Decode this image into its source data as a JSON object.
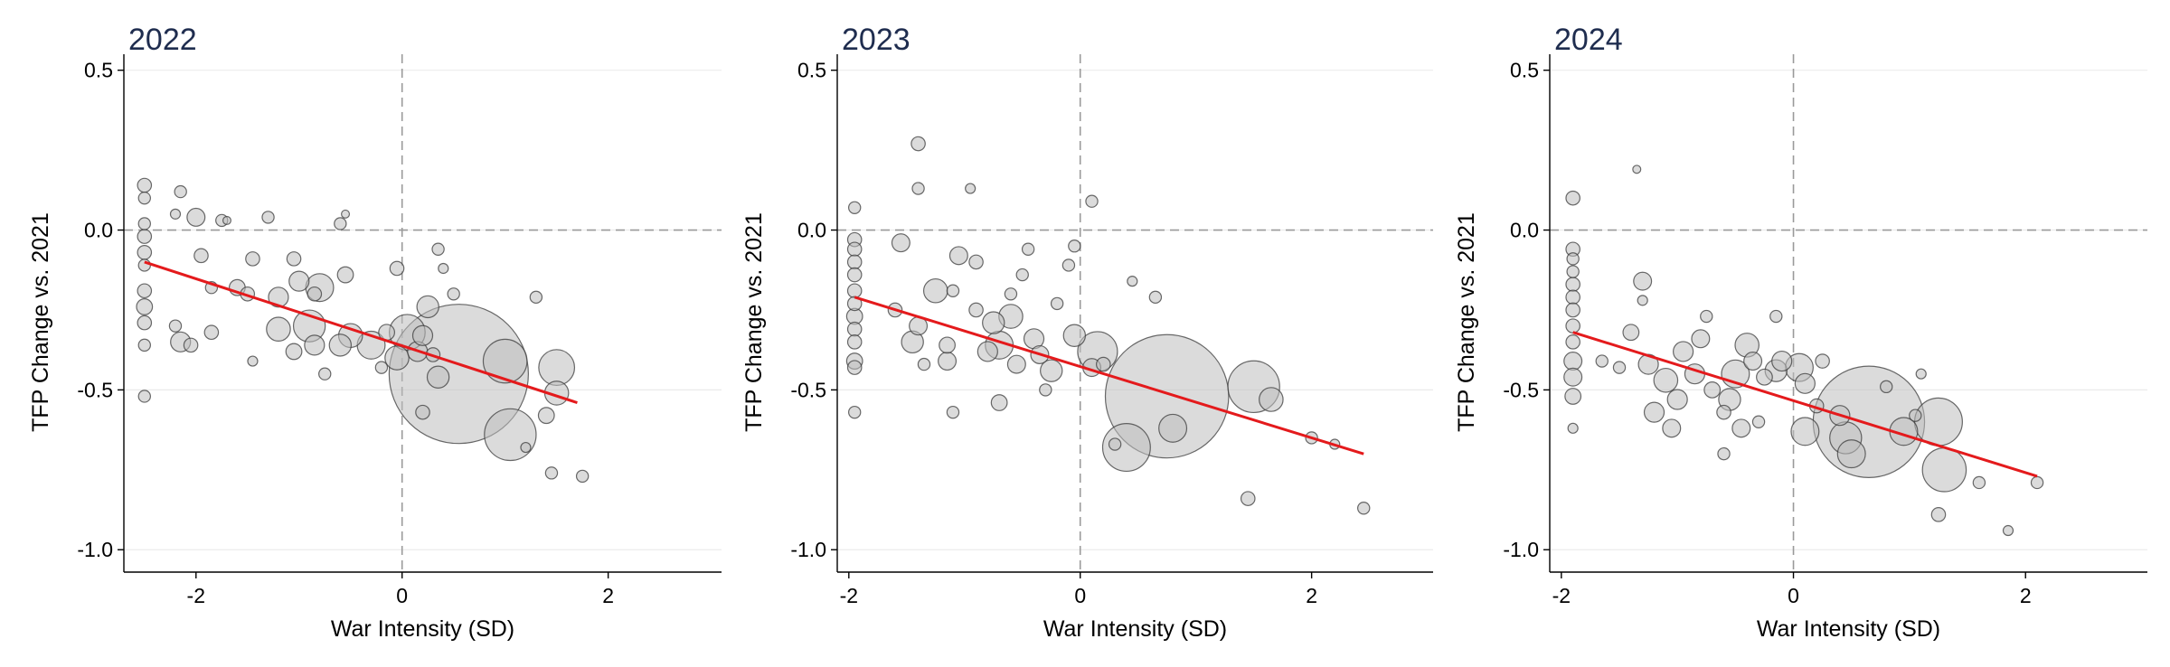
{
  "colors": {
    "bubble_fill": "#bdbdbd",
    "bubble_stroke": "#3a3a3a",
    "fit_line": "#e41a1c",
    "title": "#1f2d4f",
    "reference_line": "#9a9a9a",
    "grid": "#ebebeb"
  },
  "chart_data": [
    {
      "type": "scatter",
      "title": "2022",
      "xlabel": "War Intensity (SD)",
      "ylabel": "TFP Change vs. 2021",
      "xlim": [
        -2.7,
        3.1
      ],
      "ylim": [
        -1.07,
        0.55
      ],
      "xticks": [
        -2,
        0,
        2
      ],
      "yticks": [
        0.5,
        0.0,
        -0.5,
        -1.0
      ],
      "ytick_labels": [
        "0.5",
        "0.0",
        "-0.5",
        "-1.0"
      ],
      "grid": "horizontal",
      "reference_lines": {
        "x": 0,
        "y": 0
      },
      "fit": {
        "x": [
          -2.5,
          1.7
        ],
        "y": [
          -0.1,
          -0.54
        ]
      },
      "points": [
        {
          "x": -2.5,
          "y": 0.14,
          "s": 0.35
        },
        {
          "x": -2.5,
          "y": 0.1,
          "s": 0.3
        },
        {
          "x": -2.5,
          "y": 0.02,
          "s": 0.3
        },
        {
          "x": -2.5,
          "y": -0.02,
          "s": 0.35
        },
        {
          "x": -2.5,
          "y": -0.07,
          "s": 0.35
        },
        {
          "x": -2.5,
          "y": -0.11,
          "s": 0.3
        },
        {
          "x": -2.5,
          "y": -0.19,
          "s": 0.35
        },
        {
          "x": -2.5,
          "y": -0.24,
          "s": 0.4
        },
        {
          "x": -2.5,
          "y": -0.29,
          "s": 0.35
        },
        {
          "x": -2.5,
          "y": -0.36,
          "s": 0.3
        },
        {
          "x": -2.5,
          "y": -0.52,
          "s": 0.3
        },
        {
          "x": -2.15,
          "y": 0.12,
          "s": 0.3
        },
        {
          "x": -2.2,
          "y": 0.05,
          "s": 0.25
        },
        {
          "x": -2.0,
          "y": 0.04,
          "s": 0.45
        },
        {
          "x": -1.75,
          "y": 0.03,
          "s": 0.3
        },
        {
          "x": -1.7,
          "y": 0.03,
          "s": 0.2
        },
        {
          "x": -1.3,
          "y": 0.04,
          "s": 0.3
        },
        {
          "x": -1.95,
          "y": -0.08,
          "s": 0.35
        },
        {
          "x": -1.45,
          "y": -0.09,
          "s": 0.35
        },
        {
          "x": -0.55,
          "y": 0.05,
          "s": 0.2
        },
        {
          "x": -0.6,
          "y": 0.02,
          "s": 0.3
        },
        {
          "x": -2.2,
          "y": -0.3,
          "s": 0.3
        },
        {
          "x": -2.15,
          "y": -0.35,
          "s": 0.5
        },
        {
          "x": -2.05,
          "y": -0.36,
          "s": 0.35
        },
        {
          "x": -1.85,
          "y": -0.32,
          "s": 0.35
        },
        {
          "x": -1.6,
          "y": -0.18,
          "s": 0.4
        },
        {
          "x": -1.5,
          "y": -0.2,
          "s": 0.35
        },
        {
          "x": -1.2,
          "y": -0.21,
          "s": 0.5
        },
        {
          "x": -1.2,
          "y": -0.31,
          "s": 0.6
        },
        {
          "x": -1.05,
          "y": -0.09,
          "s": 0.35
        },
        {
          "x": -1.0,
          "y": -0.16,
          "s": 0.5
        },
        {
          "x": -0.8,
          "y": -0.18,
          "s": 0.7
        },
        {
          "x": -0.9,
          "y": -0.3,
          "s": 0.8
        },
        {
          "x": -0.85,
          "y": -0.36,
          "s": 0.5
        },
        {
          "x": -0.55,
          "y": -0.14,
          "s": 0.4
        },
        {
          "x": -0.5,
          "y": -0.33,
          "s": 0.6
        },
        {
          "x": -0.6,
          "y": -0.36,
          "s": 0.55
        },
        {
          "x": -1.05,
          "y": -0.38,
          "s": 0.4
        },
        {
          "x": -1.45,
          "y": -0.41,
          "s": 0.25
        },
        {
          "x": -0.75,
          "y": -0.45,
          "s": 0.3
        },
        {
          "x": -0.3,
          "y": -0.36,
          "s": 0.7
        },
        {
          "x": -0.05,
          "y": -0.4,
          "s": 0.6
        },
        {
          "x": -0.05,
          "y": -0.12,
          "s": 0.35
        },
        {
          "x": 0.05,
          "y": -0.32,
          "s": 0.9
        },
        {
          "x": 0.15,
          "y": -0.38,
          "s": 0.5
        },
        {
          "x": 0.25,
          "y": -0.24,
          "s": 0.55
        },
        {
          "x": 0.2,
          "y": -0.33,
          "s": 0.5
        },
        {
          "x": 0.3,
          "y": -0.39,
          "s": 0.35
        },
        {
          "x": 0.35,
          "y": -0.06,
          "s": 0.3
        },
        {
          "x": 0.4,
          "y": -0.12,
          "s": 0.25
        },
        {
          "x": 0.35,
          "y": -0.46,
          "s": 0.55
        },
        {
          "x": 0.2,
          "y": -0.57,
          "s": 0.35
        },
        {
          "x": 0.55,
          "y": -0.45,
          "s": 3.5
        },
        {
          "x": 1.05,
          "y": -0.64,
          "s": 1.3
        },
        {
          "x": 1.0,
          "y": -0.41,
          "s": 1.1
        },
        {
          "x": 1.5,
          "y": -0.43,
          "s": 0.9
        },
        {
          "x": 1.5,
          "y": -0.51,
          "s": 0.6
        },
        {
          "x": 1.4,
          "y": -0.58,
          "s": 0.4
        },
        {
          "x": 1.3,
          "y": -0.21,
          "s": 0.3
        },
        {
          "x": 1.2,
          "y": -0.68,
          "s": 0.25
        },
        {
          "x": 1.45,
          "y": -0.76,
          "s": 0.3
        },
        {
          "x": 1.75,
          "y": -0.77,
          "s": 0.3
        },
        {
          "x": -0.15,
          "y": -0.32,
          "s": 0.4
        },
        {
          "x": -1.85,
          "y": -0.18,
          "s": 0.3
        },
        {
          "x": -0.2,
          "y": -0.43,
          "s": 0.3
        },
        {
          "x": -0.85,
          "y": -0.2,
          "s": 0.35
        },
        {
          "x": 0.5,
          "y": -0.2,
          "s": 0.3
        }
      ]
    },
    {
      "type": "scatter",
      "title": "2023",
      "xlabel": "War Intensity (SD)",
      "ylabel": "TFP Change vs. 2021",
      "xlim": [
        -2.1,
        3.05
      ],
      "ylim": [
        -1.07,
        0.55
      ],
      "xticks": [
        -2,
        0,
        2
      ],
      "yticks": [
        0.5,
        0.0,
        -0.5,
        -1.0
      ],
      "ytick_labels": [
        "0.5",
        "0.0",
        "-0.5",
        "-1.0"
      ],
      "grid": "horizontal",
      "reference_lines": {
        "x": 0,
        "y": 0
      },
      "fit": {
        "x": [
          -1.95,
          2.45
        ],
        "y": [
          -0.21,
          -0.7
        ]
      },
      "points": [
        {
          "x": -1.95,
          "y": 0.07,
          "s": 0.3
        },
        {
          "x": -1.95,
          "y": -0.03,
          "s": 0.35
        },
        {
          "x": -1.95,
          "y": -0.06,
          "s": 0.35
        },
        {
          "x": -1.95,
          "y": -0.1,
          "s": 0.35
        },
        {
          "x": -1.95,
          "y": -0.14,
          "s": 0.35
        },
        {
          "x": -1.95,
          "y": -0.19,
          "s": 0.35
        },
        {
          "x": -1.95,
          "y": -0.23,
          "s": 0.35
        },
        {
          "x": -1.95,
          "y": -0.27,
          "s": 0.4
        },
        {
          "x": -1.95,
          "y": -0.31,
          "s": 0.35
        },
        {
          "x": -1.95,
          "y": -0.35,
          "s": 0.35
        },
        {
          "x": -1.95,
          "y": -0.41,
          "s": 0.4
        },
        {
          "x": -1.95,
          "y": -0.43,
          "s": 0.35
        },
        {
          "x": -1.95,
          "y": -0.57,
          "s": 0.3
        },
        {
          "x": -1.4,
          "y": 0.27,
          "s": 0.35
        },
        {
          "x": -1.4,
          "y": 0.13,
          "s": 0.3
        },
        {
          "x": -0.95,
          "y": 0.13,
          "s": 0.25
        },
        {
          "x": 0.1,
          "y": 0.09,
          "s": 0.3
        },
        {
          "x": -1.55,
          "y": -0.04,
          "s": 0.45
        },
        {
          "x": -1.05,
          "y": -0.08,
          "s": 0.45
        },
        {
          "x": -0.9,
          "y": -0.1,
          "s": 0.35
        },
        {
          "x": -0.45,
          "y": -0.06,
          "s": 0.3
        },
        {
          "x": -0.05,
          "y": -0.05,
          "s": 0.3
        },
        {
          "x": -0.1,
          "y": -0.11,
          "s": 0.3
        },
        {
          "x": -0.5,
          "y": -0.14,
          "s": 0.3
        },
        {
          "x": -1.25,
          "y": -0.19,
          "s": 0.6
        },
        {
          "x": -1.1,
          "y": -0.19,
          "s": 0.3
        },
        {
          "x": -1.4,
          "y": -0.3,
          "s": 0.45
        },
        {
          "x": -1.45,
          "y": -0.35,
          "s": 0.55
        },
        {
          "x": -1.15,
          "y": -0.36,
          "s": 0.4
        },
        {
          "x": -1.15,
          "y": -0.41,
          "s": 0.45
        },
        {
          "x": -0.9,
          "y": -0.25,
          "s": 0.35
        },
        {
          "x": -0.75,
          "y": -0.29,
          "s": 0.55
        },
        {
          "x": -0.6,
          "y": -0.27,
          "s": 0.6
        },
        {
          "x": -0.7,
          "y": -0.36,
          "s": 0.7
        },
        {
          "x": -0.4,
          "y": -0.34,
          "s": 0.5
        },
        {
          "x": -0.35,
          "y": -0.39,
          "s": 0.45
        },
        {
          "x": -0.2,
          "y": -0.23,
          "s": 0.3
        },
        {
          "x": -0.55,
          "y": -0.42,
          "s": 0.45
        },
        {
          "x": -0.25,
          "y": -0.44,
          "s": 0.55
        },
        {
          "x": -0.05,
          "y": -0.33,
          "s": 0.55
        },
        {
          "x": -1.1,
          "y": -0.57,
          "s": 0.3
        },
        {
          "x": -0.7,
          "y": -0.54,
          "s": 0.4
        },
        {
          "x": -1.35,
          "y": -0.42,
          "s": 0.3
        },
        {
          "x": -0.3,
          "y": -0.5,
          "s": 0.3
        },
        {
          "x": 0.15,
          "y": -0.38,
          "s": 1.0
        },
        {
          "x": 0.1,
          "y": -0.43,
          "s": 0.45
        },
        {
          "x": 0.2,
          "y": -0.42,
          "s": 0.35
        },
        {
          "x": 0.45,
          "y": -0.16,
          "s": 0.25
        },
        {
          "x": 0.65,
          "y": -0.21,
          "s": 0.3
        },
        {
          "x": 0.75,
          "y": -0.52,
          "s": 3.1
        },
        {
          "x": 0.4,
          "y": -0.68,
          "s": 1.2
        },
        {
          "x": 0.8,
          "y": -0.62,
          "s": 0.7
        },
        {
          "x": 1.5,
          "y": -0.49,
          "s": 1.3
        },
        {
          "x": 1.65,
          "y": -0.53,
          "s": 0.6
        },
        {
          "x": 2.0,
          "y": -0.65,
          "s": 0.3
        },
        {
          "x": 2.2,
          "y": -0.67,
          "s": 0.25
        },
        {
          "x": 1.45,
          "y": -0.84,
          "s": 0.35
        },
        {
          "x": 2.45,
          "y": -0.87,
          "s": 0.3
        },
        {
          "x": 0.3,
          "y": -0.67,
          "s": 0.3
        },
        {
          "x": -0.8,
          "y": -0.38,
          "s": 0.5
        },
        {
          "x": -1.6,
          "y": -0.25,
          "s": 0.35
        },
        {
          "x": -0.6,
          "y": -0.2,
          "s": 0.3
        }
      ]
    },
    {
      "type": "scatter",
      "title": "2024",
      "xlabel": "War Intensity (SD)",
      "ylabel": "TFP Change vs. 2021",
      "xlim": [
        -2.1,
        3.05
      ],
      "ylim": [
        -1.07,
        0.55
      ],
      "xticks": [
        -2,
        0,
        2
      ],
      "yticks": [
        0.5,
        0.0,
        -0.5,
        -1.0
      ],
      "ytick_labels": [
        "0.5",
        "0.0",
        "-0.5",
        "-1.0"
      ],
      "grid": "horizontal",
      "reference_lines": {
        "x": 0,
        "y": 0
      },
      "fit": {
        "x": [
          -1.9,
          2.1
        ],
        "y": [
          -0.32,
          -0.77
        ]
      },
      "points": [
        {
          "x": -1.9,
          "y": 0.1,
          "s": 0.35
        },
        {
          "x": -1.9,
          "y": -0.06,
          "s": 0.35
        },
        {
          "x": -1.9,
          "y": -0.09,
          "s": 0.3
        },
        {
          "x": -1.9,
          "y": -0.13,
          "s": 0.3
        },
        {
          "x": -1.9,
          "y": -0.17,
          "s": 0.35
        },
        {
          "x": -1.9,
          "y": -0.21,
          "s": 0.35
        },
        {
          "x": -1.9,
          "y": -0.25,
          "s": 0.35
        },
        {
          "x": -1.9,
          "y": -0.3,
          "s": 0.35
        },
        {
          "x": -1.9,
          "y": -0.35,
          "s": 0.35
        },
        {
          "x": -1.9,
          "y": -0.41,
          "s": 0.45
        },
        {
          "x": -1.9,
          "y": -0.46,
          "s": 0.45
        },
        {
          "x": -1.9,
          "y": -0.52,
          "s": 0.4
        },
        {
          "x": -1.9,
          "y": -0.62,
          "s": 0.25
        },
        {
          "x": -1.35,
          "y": 0.19,
          "s": 0.2
        },
        {
          "x": -1.3,
          "y": -0.16,
          "s": 0.45
        },
        {
          "x": -1.3,
          "y": -0.22,
          "s": 0.25
        },
        {
          "x": -1.4,
          "y": -0.32,
          "s": 0.4
        },
        {
          "x": -1.5,
          "y": -0.43,
          "s": 0.3
        },
        {
          "x": -1.25,
          "y": -0.42,
          "s": 0.5
        },
        {
          "x": -1.2,
          "y": -0.57,
          "s": 0.5
        },
        {
          "x": -1.1,
          "y": -0.47,
          "s": 0.6
        },
        {
          "x": -1.0,
          "y": -0.53,
          "s": 0.5
        },
        {
          "x": -0.95,
          "y": -0.38,
          "s": 0.5
        },
        {
          "x": -0.85,
          "y": -0.45,
          "s": 0.5
        },
        {
          "x": -1.05,
          "y": -0.62,
          "s": 0.45
        },
        {
          "x": -0.75,
          "y": -0.27,
          "s": 0.3
        },
        {
          "x": -0.7,
          "y": -0.5,
          "s": 0.4
        },
        {
          "x": -0.6,
          "y": -0.57,
          "s": 0.35
        },
        {
          "x": -0.5,
          "y": -0.45,
          "s": 0.7
        },
        {
          "x": -0.55,
          "y": -0.53,
          "s": 0.55
        },
        {
          "x": -0.4,
          "y": -0.36,
          "s": 0.6
        },
        {
          "x": -0.35,
          "y": -0.41,
          "s": 0.45
        },
        {
          "x": -0.45,
          "y": -0.62,
          "s": 0.45
        },
        {
          "x": -0.6,
          "y": -0.7,
          "s": 0.3
        },
        {
          "x": -0.25,
          "y": -0.46,
          "s": 0.4
        },
        {
          "x": -0.15,
          "y": -0.27,
          "s": 0.3
        },
        {
          "x": -0.15,
          "y": -0.44,
          "s": 0.55
        },
        {
          "x": -0.1,
          "y": -0.41,
          "s": 0.5
        },
        {
          "x": 0.05,
          "y": -0.43,
          "s": 0.7
        },
        {
          "x": 0.1,
          "y": -0.48,
          "s": 0.5
        },
        {
          "x": 0.25,
          "y": -0.41,
          "s": 0.35
        },
        {
          "x": 0.1,
          "y": -0.63,
          "s": 0.7
        },
        {
          "x": 0.4,
          "y": -0.58,
          "s": 0.5
        },
        {
          "x": 0.45,
          "y": -0.65,
          "s": 0.8
        },
        {
          "x": 0.65,
          "y": -0.6,
          "s": 2.8
        },
        {
          "x": 0.5,
          "y": -0.7,
          "s": 0.7
        },
        {
          "x": 0.8,
          "y": -0.49,
          "s": 0.3
        },
        {
          "x": 0.95,
          "y": -0.63,
          "s": 0.7
        },
        {
          "x": 1.05,
          "y": -0.58,
          "s": 0.3
        },
        {
          "x": 1.1,
          "y": -0.45,
          "s": 0.25
        },
        {
          "x": 1.25,
          "y": -0.6,
          "s": 1.2
        },
        {
          "x": 1.3,
          "y": -0.75,
          "s": 1.1
        },
        {
          "x": 1.25,
          "y": -0.89,
          "s": 0.35
        },
        {
          "x": 1.6,
          "y": -0.79,
          "s": 0.3
        },
        {
          "x": 1.85,
          "y": -0.94,
          "s": 0.25
        },
        {
          "x": 2.1,
          "y": -0.79,
          "s": 0.3
        },
        {
          "x": -1.65,
          "y": -0.41,
          "s": 0.3
        },
        {
          "x": -0.8,
          "y": -0.34,
          "s": 0.45
        },
        {
          "x": 0.2,
          "y": -0.55,
          "s": 0.35
        },
        {
          "x": -0.3,
          "y": -0.6,
          "s": 0.3
        }
      ]
    }
  ]
}
